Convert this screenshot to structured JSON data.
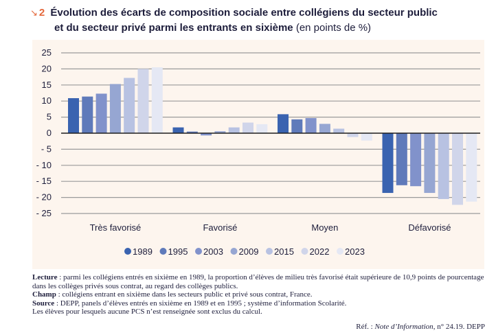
{
  "figure": {
    "number": "2",
    "arrow_icon": "arrow-down-right",
    "title_bold_line1": "Évolution des écarts de composition sociale entre collégiens du secteur public",
    "title_bold_line2": "et du secteur privé parmi les entrants en sixième",
    "title_unit": "(en points de %)"
  },
  "chart_data": {
    "type": "bar",
    "title": "Évolution des écarts de composition sociale entre collégiens du secteur public et du secteur privé parmi les entrants en sixième (en points de %)",
    "xlabel": "",
    "ylabel": "",
    "ylim": [
      -25,
      25
    ],
    "yticks": [
      25,
      20,
      15,
      10,
      5,
      0,
      -5,
      -10,
      -15,
      -20,
      -25
    ],
    "ytick_labels": [
      "25",
      "20",
      "15",
      "10",
      "5",
      "0",
      "- 5",
      "- 10",
      "- 15",
      "- 20",
      "- 25"
    ],
    "grid": true,
    "legend_position": "bottom",
    "categories": [
      "Très favorisé",
      "Favorisé",
      "Moyen",
      "Défavorisé"
    ],
    "series": [
      {
        "name": "1989",
        "color": "#3a63b0",
        "values": [
          10.9,
          1.8,
          5.9,
          -18.6
        ]
      },
      {
        "name": "1995",
        "color": "#5f7aba",
        "values": [
          11.4,
          0.5,
          4.3,
          -16.2
        ]
      },
      {
        "name": "2003",
        "color": "#8192cb",
        "values": [
          12.3,
          -0.7,
          4.7,
          -16.5
        ]
      },
      {
        "name": "2009",
        "color": "#96a6d2",
        "values": [
          15.3,
          0.6,
          2.9,
          -18.6
        ]
      },
      {
        "name": "2015",
        "color": "#b8c2e2",
        "values": [
          17.2,
          1.8,
          1.4,
          -20.5
        ]
      },
      {
        "name": "2022",
        "color": "#d0d5ea",
        "values": [
          20.0,
          3.3,
          -1.2,
          -22.3
        ]
      },
      {
        "name": "2023",
        "color": "#e5e8f4",
        "values": [
          20.5,
          2.8,
          -2.3,
          -21.3
        ]
      }
    ]
  },
  "notes": {
    "lecture_label": "Lecture",
    "lecture_text": " : parmi les collégiens entrés en sixième en 1989, la proportion d’élèves de milieu très favorisé était supérieure de 10,9 points de pourcentage dans les collèges privés sous contrat, au regard des collèges publics.",
    "champ_label": "Champ",
    "champ_text": " : collégiens entrant en sixième dans les secteurs public et privé sous contrat, France.",
    "source_label": "Source",
    "source_text": " : DEPP, panels d’élèves entrés en sixième en 1989 et en 1995 ; système d’information Scolarité.",
    "extra_text": "Les élèves pour lesquels aucune PCS n’est renseignée sont exclus du calcul.",
    "ref_prefix": "Réf. : ",
    "ref_italic": "Note d’Information",
    "ref_suffix": ", n° 24.19. DEPP"
  }
}
